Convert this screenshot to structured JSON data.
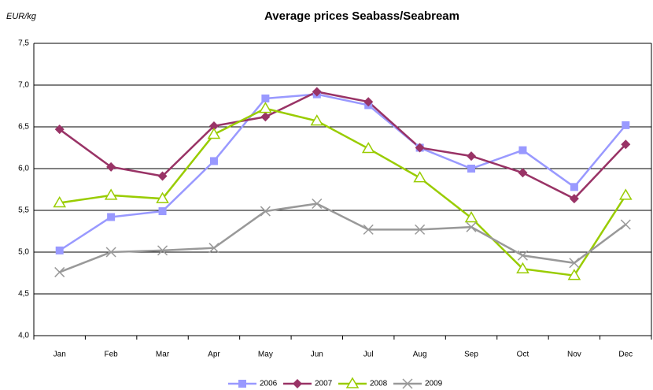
{
  "chart_data": {
    "type": "line",
    "title": "Average prices Seabass/Seabream",
    "ylabel": "EUR/kg",
    "categories": [
      "Jan",
      "Feb",
      "Mar",
      "Apr",
      "May",
      "Jun",
      "Jul",
      "Aug",
      "Sep",
      "Oct",
      "Nov",
      "Dec"
    ],
    "series": [
      {
        "name": "2006",
        "color": "#9999ff",
        "marker": "square",
        "values": [
          5.02,
          5.42,
          5.49,
          6.09,
          6.84,
          6.89,
          6.76,
          6.25,
          6.0,
          6.22,
          5.78,
          6.52
        ]
      },
      {
        "name": "2007",
        "color": "#993366",
        "marker": "diamond",
        "values": [
          6.47,
          6.02,
          5.91,
          6.51,
          6.62,
          6.92,
          6.8,
          6.25,
          6.15,
          5.95,
          5.64,
          6.29
        ]
      },
      {
        "name": "2008",
        "color": "#99cc00",
        "marker": "triangle",
        "values": [
          5.59,
          5.68,
          5.64,
          6.41,
          6.72,
          6.57,
          6.24,
          5.89,
          5.41,
          4.8,
          4.72,
          5.68
        ]
      },
      {
        "name": "2009",
        "color": "#999999",
        "marker": "x",
        "values": [
          4.76,
          5.0,
          5.02,
          5.05,
          5.49,
          5.58,
          5.27,
          5.27,
          5.3,
          4.96,
          4.87,
          5.33
        ]
      }
    ],
    "ylim": [
      4.0,
      7.5
    ],
    "yticks": [
      {
        "value": 4.0,
        "label": "4,0"
      },
      {
        "value": 4.5,
        "label": "4,5"
      },
      {
        "value": 5.0,
        "label": "5,0"
      },
      {
        "value": 5.5,
        "label": "5,5"
      },
      {
        "value": 6.0,
        "label": "6,0"
      },
      {
        "value": 6.5,
        "label": "6,5"
      },
      {
        "value": 7.0,
        "label": "7,0"
      },
      {
        "value": 7.5,
        "label": "7,5"
      }
    ],
    "grid": true,
    "legend": "bottom"
  }
}
